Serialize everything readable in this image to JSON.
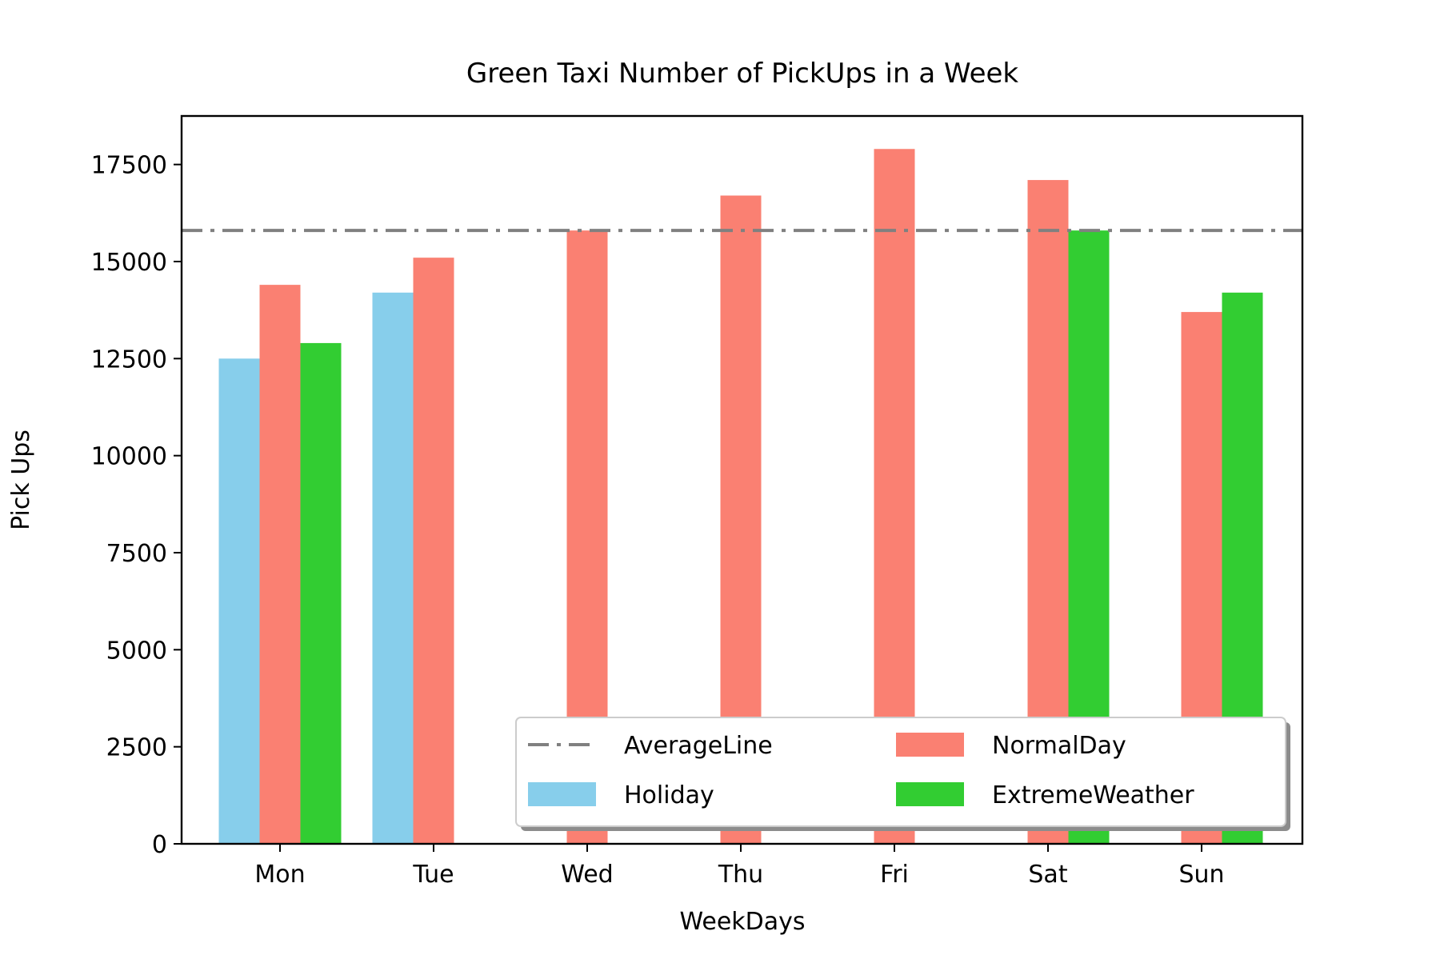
{
  "chart_data": {
    "type": "bar",
    "title": "Green Taxi Number of PickUps in a Week",
    "xlabel": "WeekDays",
    "ylabel": "Pick Ups",
    "categories": [
      "Mon",
      "Tue",
      "Wed",
      "Thu",
      "Fri",
      "Sat",
      "Sun"
    ],
    "ylim": [
      0,
      18750
    ],
    "yticks": [
      0,
      2500,
      5000,
      7500,
      10000,
      12500,
      15000,
      17500
    ],
    "ytick_labels": [
      "0",
      "2500",
      "5000",
      "7500",
      "10000",
      "12500",
      "15000",
      "17500"
    ],
    "grid": false,
    "legend_position": "lower-right",
    "series": [
      {
        "name": "Holiday",
        "color": "#87CEEB",
        "values": [
          12500,
          14200,
          null,
          null,
          null,
          null,
          null
        ]
      },
      {
        "name": "NormalDay",
        "color": "#FA8072",
        "values": [
          14400,
          15100,
          15800,
          16700,
          17900,
          17100,
          13700
        ]
      },
      {
        "name": "ExtremeWeather",
        "color": "#32CD32",
        "values": [
          12900,
          null,
          null,
          null,
          null,
          15800,
          14200
        ]
      }
    ],
    "reference_lines": [
      {
        "name": "AverageLine",
        "value": 15800,
        "color": "#808080",
        "style": "dash-dot"
      }
    ]
  }
}
